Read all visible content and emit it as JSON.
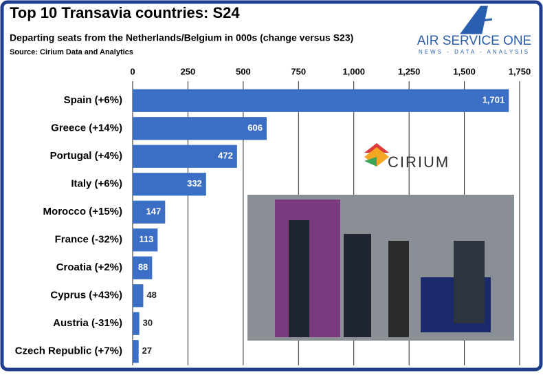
{
  "chart_data": {
    "type": "hbar",
    "title": "Top 10 Transavia countries: S24",
    "subtitle": "Departing seats from the Netherlands/Belgium in 000s (change versus S23)",
    "source": "Source: Cirium Data and Analytics",
    "categories": [
      "Spain (+6%)",
      "Greece (+14%)",
      "Portugal (+4%)",
      "Italy (+6%)",
      "Morocco (+15%)",
      "France (-32%)",
      "Croatia (+2%)",
      "Cyprus (+43%)",
      "Austria (-31%)",
      "Czech Republic (+7%)"
    ],
    "values": [
      1701,
      606,
      472,
      332,
      147,
      113,
      88,
      48,
      30,
      27
    ],
    "value_labels": [
      "1,701",
      "606",
      "472",
      "332",
      "147",
      "113",
      "88",
      "48",
      "30",
      "27"
    ],
    "color": "#3b6fc5",
    "xlim": [
      0,
      1750
    ],
    "xticks": [
      0,
      250,
      500,
      750,
      {
        "value": 1000,
        "label": "1,000"
      },
      {
        "value": 1250,
        "label": "1,250"
      },
      {
        "value": 1500,
        "label": "1,500"
      },
      {
        "value": 1750,
        "label": "1,750"
      }
    ],
    "grid": true
  },
  "logos": {
    "brand": "AIR SERVICE ONE",
    "tagline": "NEWS - DATA - ANALYSIS",
    "partner": "CIRIUM"
  }
}
